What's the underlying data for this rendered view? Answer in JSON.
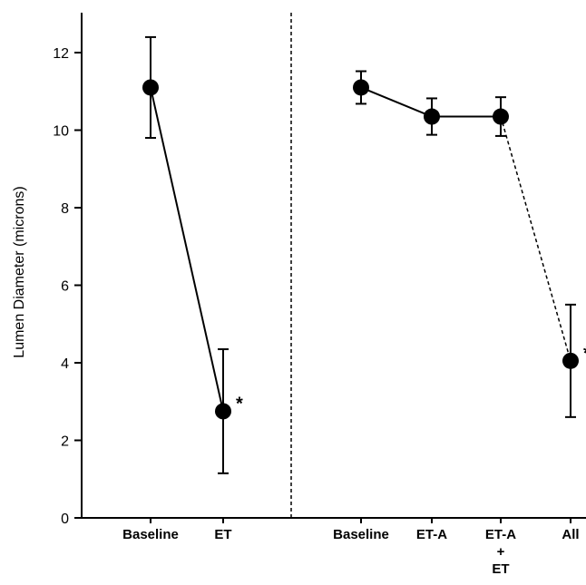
{
  "chart_data": {
    "type": "line",
    "ylabel": "Lumen Diameter (microns)",
    "ylim": [
      0,
      13
    ],
    "yticks": [
      0,
      2,
      4,
      6,
      8,
      10,
      12
    ],
    "grid": false,
    "panels": [
      {
        "categories": [
          "Baseline",
          "ET"
        ],
        "values": [
          11.1,
          2.75
        ],
        "error": [
          1.3,
          1.6
        ],
        "significance": [
          "",
          "*"
        ],
        "segments": [
          "solid"
        ]
      },
      {
        "categories": [
          "Baseline",
          "ET-A",
          "ET-A\n+\nET",
          "All"
        ],
        "values": [
          11.1,
          10.35,
          10.35,
          4.05
        ],
        "error": [
          0.42,
          0.47,
          0.5,
          1.45
        ],
        "significance": [
          "",
          "",
          "",
          "*"
        ],
        "segments": [
          "solid",
          "solid",
          "dashed"
        ]
      }
    ]
  }
}
